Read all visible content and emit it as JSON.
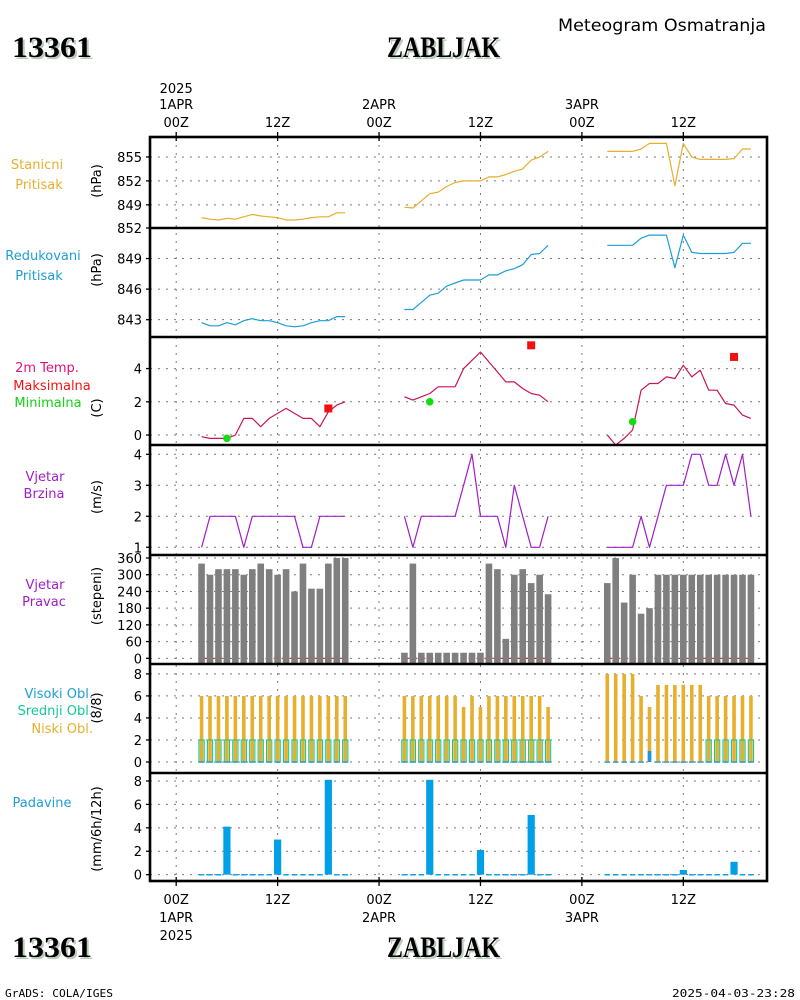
{
  "header": {
    "station_id": "13361",
    "station_name": "ZABLJAK",
    "product_title": "Meteogram Osmatranja"
  },
  "footer": {
    "software": "GrADS: COLA/IGES",
    "generated": "2025-04-03-23:28"
  },
  "time_axis": {
    "start": "2025-04-01 00Z",
    "step_hours": 1,
    "xlim_hours": [
      -3.1,
      69.9
    ],
    "ticks": [
      {
        "hour": 0,
        "time": "00Z",
        "date": "1APR",
        "year": "2025"
      },
      {
        "hour": 12,
        "time": "12Z",
        "date": "",
        "year": ""
      },
      {
        "hour": 24,
        "time": "00Z",
        "date": "2APR",
        "year": ""
      },
      {
        "hour": 36,
        "time": "12Z",
        "date": "",
        "year": ""
      },
      {
        "hour": 48,
        "time": "00Z",
        "date": "3APR",
        "year": ""
      },
      {
        "hour": 60,
        "time": "12Z",
        "date": "",
        "year": ""
      }
    ]
  },
  "chart_data": [
    {
      "id": "station_pressure",
      "type": "line",
      "labels": [
        {
          "text": "Stanicni",
          "color": "#e6af2d"
        },
        {
          "text": "Pritisak",
          "color": "#e6af2d"
        }
      ],
      "ylabel": "(hPa)",
      "ylim": [
        846.1,
        857.5
      ],
      "yticks": [
        "849",
        "852",
        "855"
      ],
      "grid": true,
      "series": [
        {
          "id": "station",
          "name": "Stanicni Pritisak",
          "color": "#e6af2d",
          "segments": [
            {
              "start_hour": 3,
              "values": [
                847.4,
                847.2,
                847.1,
                847.3,
                847.2,
                847.5,
                847.8,
                847.6,
                847.5,
                847.4,
                847.1,
                847.1,
                847.2,
                847.4,
                847.5,
                847.5,
                848.0,
                848.0
              ]
            },
            {
              "start_hour": 27,
              "values": [
                848.7,
                848.6,
                849.5,
                850.4,
                850.6,
                851.3,
                851.8,
                852.0,
                852.0,
                852.0,
                852.5,
                852.5,
                852.8,
                853.2,
                853.5,
                854.6,
                855.0,
                855.7
              ]
            },
            {
              "start_hour": 51,
              "values": [
                855.7,
                855.7,
                855.7,
                855.7,
                856.0,
                856.7,
                856.7,
                856.7,
                851.4,
                856.7,
                855.0,
                854.7,
                854.7,
                854.7,
                854.7,
                854.8,
                856.0,
                856.0
              ]
            }
          ]
        }
      ]
    },
    {
      "id": "reduced_pressure",
      "type": "line",
      "labels": [
        {
          "text": "Redukovani",
          "color": "#1e9ed6"
        },
        {
          "text": "Pritisak",
          "color": "#1e9ed6"
        }
      ],
      "ylabel": "(hPa)",
      "ylim": [
        841.3,
        852.0
      ],
      "yticks": [
        "843",
        "846",
        "849",
        "852"
      ],
      "grid": true,
      "series": [
        {
          "id": "reduced",
          "name": "Redukovani Pritisak",
          "color": "#1e9ed6",
          "segments": [
            {
              "start_hour": 3,
              "values": [
                842.7,
                842.4,
                842.4,
                842.7,
                842.5,
                842.9,
                843.1,
                842.9,
                842.9,
                842.7,
                842.4,
                842.3,
                842.4,
                842.7,
                842.9,
                842.9,
                843.3,
                843.3
              ]
            },
            {
              "start_hour": 27,
              "values": [
                844.0,
                844.0,
                844.7,
                845.4,
                845.6,
                846.3,
                846.6,
                846.9,
                846.9,
                846.9,
                847.4,
                847.4,
                847.8,
                848.0,
                848.4,
                849.4,
                849.5,
                850.3
              ]
            },
            {
              "start_hour": 51,
              "values": [
                850.3,
                850.3,
                850.3,
                850.3,
                851.0,
                851.3,
                851.3,
                851.3,
                848.1,
                851.3,
                849.6,
                849.5,
                849.5,
                849.5,
                849.5,
                849.6,
                850.5,
                850.5
              ]
            }
          ]
        }
      ]
    },
    {
      "id": "temperature",
      "type": "line",
      "labels": [
        {
          "text": "2m Temp.",
          "color": "#dc1478"
        },
        {
          "text": "Maksimalna",
          "color": "#f01414"
        },
        {
          "text": "Minimalna",
          "color": "#14d214"
        }
      ],
      "ylabel": "(C)",
      "ylim": [
        -0.6,
        5.9
      ],
      "yticks": [
        "0",
        "2",
        "4"
      ],
      "grid": true,
      "series": [
        {
          "id": "temp_2m",
          "name": "2m Temp.",
          "color": "#c8145a",
          "segments": [
            {
              "start_hour": 3,
              "values": [
                -0.1,
                -0.2,
                -0.2,
                -0.2,
                0.0,
                1.0,
                1.0,
                0.5,
                1.0,
                1.3,
                1.6,
                1.3,
                1.0,
                1.0,
                0.5,
                1.4,
                1.8,
                2.0
              ]
            },
            {
              "start_hour": 27,
              "values": [
                2.3,
                2.1,
                2.3,
                2.5,
                2.9,
                2.9,
                2.9,
                4.0,
                4.5,
                5.0,
                4.4,
                3.8,
                3.2,
                3.2,
                2.8,
                2.5,
                2.4,
                2.0
              ]
            },
            {
              "start_hour": 51,
              "values": [
                0.0,
                -0.6,
                -0.2,
                0.3,
                2.7,
                3.1,
                3.1,
                3.5,
                3.4,
                4.2,
                3.5,
                3.9,
                2.7,
                2.7,
                1.9,
                1.8,
                1.2,
                1.0
              ]
            }
          ]
        }
      ],
      "markers": {
        "max": {
          "name": "Maksimalna",
          "color": "#f01010",
          "points": [
            {
              "hour": 18,
              "value": 1.6
            },
            {
              "hour": 42,
              "value": 5.4
            },
            {
              "hour": 66,
              "value": 4.7
            }
          ]
        },
        "min": {
          "name": "Minimalna",
          "color": "#14dc14",
          "points": [
            {
              "hour": 6,
              "value": -0.2
            },
            {
              "hour": 30,
              "value": 2.0
            },
            {
              "hour": 54,
              "value": 0.8
            }
          ]
        }
      }
    },
    {
      "id": "wind_speed",
      "type": "line",
      "labels": [
        {
          "text": "Vjetar",
          "color": "#a01ec8"
        },
        {
          "text": "Brzina",
          "color": "#a01ec8"
        }
      ],
      "ylabel": "(m/s)",
      "ylim": [
        0.75,
        4.3
      ],
      "yticks": [
        "1",
        "2",
        "3",
        "4"
      ],
      "grid": true,
      "series": [
        {
          "id": "wind",
          "name": "Vjetar Brzina",
          "color": "#a01ec8",
          "segments": [
            {
              "start_hour": 3,
              "values": [
                1,
                2,
                2,
                2,
                2,
                1,
                2,
                2,
                2,
                2,
                2,
                2,
                1,
                1,
                2,
                2,
                2,
                2
              ]
            },
            {
              "start_hour": 27,
              "values": [
                2,
                1,
                2,
                2,
                2,
                2,
                2,
                3,
                4,
                2,
                2,
                2,
                1,
                3,
                2,
                1,
                1,
                2
              ]
            },
            {
              "start_hour": 51,
              "values": [
                1,
                1,
                1,
                1,
                2,
                1,
                2,
                3,
                3,
                3,
                4,
                4,
                3,
                3,
                4,
                3,
                4,
                2
              ]
            }
          ]
        }
      ]
    },
    {
      "id": "wind_direction",
      "type": "bar",
      "labels": [
        {
          "text": "Vjetar",
          "color": "#a01ec8"
        },
        {
          "text": "Pravac",
          "color": "#a01ec8"
        }
      ],
      "ylabel": "(stepeni)",
      "ylim": [
        -20.4,
        370.8
      ],
      "yticks": [
        "0",
        "60",
        "120",
        "180",
        "240",
        "300",
        "360"
      ],
      "grid": true,
      "zero_line_color": "#e61414",
      "series": [
        {
          "id": "direction",
          "name": "Vjetar Pravac",
          "color": "#7f7f7f",
          "segments": [
            {
              "start_hour": 3,
              "values": [
                340,
                300,
                320,
                320,
                320,
                300,
                320,
                340,
                320,
                300,
                320,
                240,
                340,
                250,
                250,
                340,
                360,
                360
              ]
            },
            {
              "start_hour": 27,
              "values": [
                20,
                340,
                20,
                20,
                20,
                20,
                20,
                20,
                20,
                20,
                340,
                320,
                70,
                300,
                320,
                270,
                300,
                230
              ]
            },
            {
              "start_hour": 51,
              "values": [
                270,
                360,
                200,
                300,
                160,
                180,
                300,
                300,
                300,
                300,
                300,
                300,
                300,
                300,
                300,
                300,
                300,
                300
              ]
            }
          ]
        }
      ]
    },
    {
      "id": "clouds",
      "type": "bar",
      "labels": [
        {
          "text": "Visoki Obl.",
          "color": "#1e9ed6"
        },
        {
          "text": "Srednji Obl.",
          "color": "#14c896"
        },
        {
          "text": "Niski Obl.",
          "color": "#e6af2d"
        }
      ],
      "ylabel": "(8/8)",
      "ylim": [
        -1.0,
        8.9
      ],
      "yticks": [
        "0",
        "2",
        "4",
        "6",
        "8"
      ],
      "grid": true,
      "series": [
        {
          "id": "low",
          "name": "Niski Obl.",
          "color": "#e6af2d",
          "segments": [
            {
              "start_hour": 3,
              "values": [
                6,
                6,
                6,
                6,
                6,
                6,
                6,
                6,
                6,
                6,
                6,
                6,
                6,
                6,
                6,
                6,
                6,
                6
              ]
            },
            {
              "start_hour": 27,
              "values": [
                6,
                6,
                6,
                6,
                6,
                6,
                6,
                5,
                6,
                5,
                6,
                6,
                6,
                6,
                6,
                6,
                6,
                5
              ]
            },
            {
              "start_hour": 51,
              "values": [
                8,
                8,
                8,
                8,
                6,
                5,
                7,
                7,
                7,
                7,
                7,
                7,
                6,
                6,
                6,
                6,
                6,
                6
              ]
            }
          ]
        },
        {
          "id": "medium",
          "name": "Srednji Obl.",
          "color": "#14c896",
          "segments": [
            {
              "start_hour": 3,
              "values": [
                2,
                2,
                2,
                2,
                2,
                2,
                2,
                2,
                2,
                2,
                2,
                2,
                2,
                2,
                2,
                2,
                2,
                2
              ]
            },
            {
              "start_hour": 27,
              "values": [
                2,
                2,
                2,
                2,
                2,
                2,
                2,
                2,
                2,
                2,
                2,
                2,
                2,
                2,
                2,
                2,
                2,
                2
              ]
            },
            {
              "start_hour": 51,
              "values": [
                0,
                0,
                0,
                0,
                0,
                0,
                0,
                0,
                0,
                0,
                0,
                0,
                2,
                2,
                2,
                2,
                2,
                2
              ]
            }
          ]
        },
        {
          "id": "high",
          "name": "Visoki Obl.",
          "color": "#1e96dc",
          "segments": [
            {
              "start_hour": 3,
              "values": [
                0,
                0,
                0,
                0,
                0,
                0,
                0,
                0,
                0,
                0,
                0,
                0,
                0,
                0,
                0,
                0,
                0,
                0
              ]
            },
            {
              "start_hour": 27,
              "values": [
                0,
                0,
                0,
                0,
                0,
                0,
                0,
                0,
                0,
                0,
                0,
                0,
                0,
                0,
                0,
                0,
                0,
                0
              ]
            },
            {
              "start_hour": 51,
              "values": [
                0,
                0,
                0,
                0,
                0,
                1,
                0,
                0,
                0,
                0,
                0,
                0,
                0,
                0,
                0,
                0,
                0,
                0
              ]
            }
          ]
        }
      ]
    },
    {
      "id": "precipitation",
      "type": "bar",
      "labels": [
        {
          "text": "Padavine",
          "color": "#1e9ed6"
        }
      ],
      "ylabel": "(mm/6h/12h)",
      "ylim": [
        -0.54,
        8.68
      ],
      "yticks": [
        "0",
        "2",
        "4",
        "6",
        "8"
      ],
      "grid": true,
      "series": [
        {
          "id": "precip",
          "name": "Padavine",
          "color": "#00a0e6",
          "segments": [
            {
              "start_hour": 3,
              "values": [
                0,
                0,
                0,
                4.1,
                0,
                0,
                0,
                0,
                0,
                3.0,
                0,
                0,
                0,
                0,
                0,
                8.1,
                0,
                0
              ]
            },
            {
              "start_hour": 27,
              "values": [
                0,
                0,
                0,
                8.1,
                0,
                0,
                0,
                0,
                0,
                2.1,
                0,
                0,
                0,
                0,
                0,
                5.1,
                0,
                0
              ]
            },
            {
              "start_hour": 51,
              "values": [
                0,
                0,
                0,
                0,
                0,
                0,
                0,
                0,
                0,
                0.4,
                0,
                0,
                0,
                0,
                0,
                1.1,
                0,
                0
              ]
            }
          ]
        }
      ]
    }
  ]
}
